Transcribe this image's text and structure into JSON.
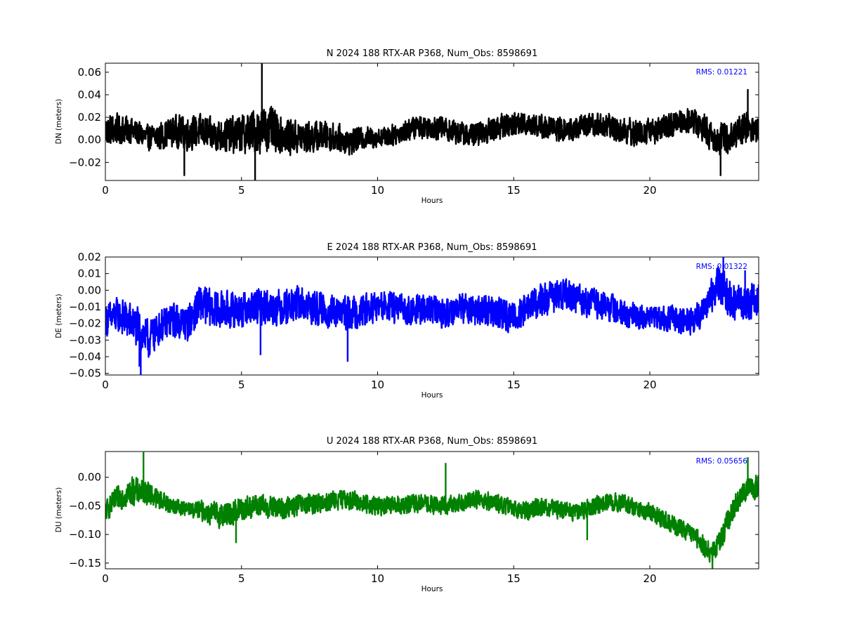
{
  "chart_data": [
    {
      "type": "line",
      "title": "N 2024 188 RTX-AR  P368, Num_Obs: 8598691",
      "xlabel": "Hours",
      "ylabel": "DN (meters)",
      "xlim": [
        0,
        24
      ],
      "ylim": [
        -0.036,
        0.068
      ],
      "xticks": [
        0,
        5,
        10,
        15,
        20
      ],
      "xtick_labels": [
        "0",
        "5",
        "10",
        "15",
        "20"
      ],
      "yticks": [
        -0.02,
        0.0,
        0.02,
        0.04,
        0.06
      ],
      "ytick_labels": [
        "−0.02",
        "0.00",
        "0.02",
        "0.04",
        "0.06"
      ],
      "grid": false,
      "annotation": "RMS:  0.01221",
      "series": [
        {
          "color": "#000000",
          "center": [
            [
              0,
              0.008
            ],
            [
              0.5,
              0.01
            ],
            [
              1,
              0.008
            ],
            [
              1.5,
              0.002
            ],
            [
              2,
              0.003
            ],
            [
              2.5,
              0.008
            ],
            [
              3,
              0.006
            ],
            [
              3.5,
              0.008
            ],
            [
              4,
              0.004
            ],
            [
              4.5,
              0.004
            ],
            [
              5,
              0.005
            ],
            [
              5.5,
              0.008
            ],
            [
              6,
              0.01
            ],
            [
              6.5,
              0.004
            ],
            [
              7,
              0.002
            ],
            [
              7.5,
              0.002
            ],
            [
              8,
              0.004
            ],
            [
              8.5,
              0.002
            ],
            [
              9,
              -0.002
            ],
            [
              9.5,
              0.002
            ],
            [
              10,
              0.002
            ],
            [
              10.5,
              0.004
            ],
            [
              11,
              0.008
            ],
            [
              11.5,
              0.012
            ],
            [
              12,
              0.012
            ],
            [
              12.5,
              0.01
            ],
            [
              13,
              0.006
            ],
            [
              13.5,
              0.004
            ],
            [
              14,
              0.008
            ],
            [
              14.5,
              0.012
            ],
            [
              15,
              0.014
            ],
            [
              15.5,
              0.015
            ],
            [
              16,
              0.012
            ],
            [
              16.5,
              0.01
            ],
            [
              17,
              0.008
            ],
            [
              17.5,
              0.012
            ],
            [
              18,
              0.014
            ],
            [
              18.5,
              0.012
            ],
            [
              19,
              0.008
            ],
            [
              19.5,
              0.006
            ],
            [
              20,
              0.008
            ],
            [
              20.5,
              0.01
            ],
            [
              21,
              0.016
            ],
            [
              21.5,
              0.018
            ],
            [
              22,
              0.01
            ],
            [
              22.5,
              0.0
            ],
            [
              23,
              0.004
            ],
            [
              23.5,
              0.012
            ],
            [
              24,
              0.008
            ]
          ],
          "amplitude": [
            [
              0,
              0.016
            ],
            [
              1.5,
              0.012
            ],
            [
              3,
              0.017
            ],
            [
              4,
              0.016
            ],
            [
              5,
              0.02
            ],
            [
              5.8,
              0.024
            ],
            [
              6.5,
              0.018
            ],
            [
              8,
              0.015
            ],
            [
              10,
              0.01
            ],
            [
              12,
              0.012
            ],
            [
              14,
              0.012
            ],
            [
              16,
              0.012
            ],
            [
              18,
              0.012
            ],
            [
              19.5,
              0.014
            ],
            [
              21,
              0.012
            ],
            [
              22.5,
              0.016
            ],
            [
              24,
              0.016
            ]
          ],
          "spikes": [
            [
              5.75,
              0.068
            ],
            [
              5.5,
              -0.036
            ],
            [
              2.9,
              -0.032
            ],
            [
              22.6,
              -0.032
            ],
            [
              23.6,
              0.045
            ]
          ]
        }
      ]
    },
    {
      "type": "line",
      "title": "E 2024 188 RTX-AR  P368, Num_Obs: 8598691",
      "xlabel": "Hours",
      "ylabel": "DE (meters)",
      "xlim": [
        0,
        24
      ],
      "ylim": [
        -0.051,
        0.02
      ],
      "xticks": [
        0,
        5,
        10,
        15,
        20
      ],
      "xtick_labels": [
        "0",
        "5",
        "10",
        "15",
        "20"
      ],
      "yticks": [
        -0.05,
        -0.04,
        -0.03,
        -0.02,
        -0.01,
        0.0,
        0.01,
        0.02
      ],
      "ytick_labels": [
        "−0.05",
        "−0.04",
        "−0.03",
        "−0.02",
        "−0.01",
        "0.00",
        "0.01",
        "0.02"
      ],
      "grid": false,
      "annotation": "RMS:  0.01322",
      "series": [
        {
          "color": "#0000ff",
          "center": [
            [
              0,
              -0.018
            ],
            [
              0.5,
              -0.015
            ],
            [
              1,
              -0.02
            ],
            [
              1.3,
              -0.025
            ],
            [
              1.6,
              -0.03
            ],
            [
              2,
              -0.022
            ],
            [
              2.5,
              -0.018
            ],
            [
              3,
              -0.02
            ],
            [
              3.5,
              -0.008
            ],
            [
              4,
              -0.012
            ],
            [
              4.5,
              -0.012
            ],
            [
              5,
              -0.012
            ],
            [
              5.5,
              -0.01
            ],
            [
              6,
              -0.01
            ],
            [
              6.5,
              -0.01
            ],
            [
              7,
              -0.008
            ],
            [
              7.5,
              -0.01
            ],
            [
              8,
              -0.012
            ],
            [
              8.5,
              -0.014
            ],
            [
              9,
              -0.014
            ],
            [
              9.5,
              -0.012
            ],
            [
              10,
              -0.01
            ],
            [
              10.5,
              -0.01
            ],
            [
              11,
              -0.012
            ],
            [
              11.5,
              -0.012
            ],
            [
              12,
              -0.012
            ],
            [
              12.5,
              -0.014
            ],
            [
              13,
              -0.01
            ],
            [
              13.5,
              -0.012
            ],
            [
              14,
              -0.012
            ],
            [
              14.5,
              -0.014
            ],
            [
              15,
              -0.016
            ],
            [
              15.5,
              -0.01
            ],
            [
              16,
              -0.006
            ],
            [
              16.5,
              -0.004
            ],
            [
              17,
              -0.002
            ],
            [
              17.5,
              -0.006
            ],
            [
              18,
              -0.008
            ],
            [
              18.5,
              -0.01
            ],
            [
              19,
              -0.014
            ],
            [
              19.5,
              -0.016
            ],
            [
              20,
              -0.016
            ],
            [
              20.5,
              -0.016
            ],
            [
              21,
              -0.018
            ],
            [
              21.5,
              -0.018
            ],
            [
              22,
              -0.012
            ],
            [
              22.5,
              0.004
            ],
            [
              23,
              -0.006
            ],
            [
              23.5,
              -0.008
            ],
            [
              24,
              -0.006
            ]
          ],
          "amplitude": [
            [
              0,
              0.011
            ],
            [
              1.3,
              0.014
            ],
            [
              2,
              0.011
            ],
            [
              3.5,
              0.013
            ],
            [
              5,
              0.012
            ],
            [
              7,
              0.012
            ],
            [
              9,
              0.011
            ],
            [
              11,
              0.01
            ],
            [
              13,
              0.01
            ],
            [
              15,
              0.011
            ],
            [
              16.5,
              0.011
            ],
            [
              18,
              0.01
            ],
            [
              20,
              0.008
            ],
            [
              22,
              0.01
            ],
            [
              22.8,
              0.013
            ],
            [
              24,
              0.012
            ]
          ],
          "spikes": [
            [
              1.3,
              -0.051
            ],
            [
              8.9,
              -0.043
            ],
            [
              22.7,
              0.02
            ],
            [
              23.5,
              0.012
            ],
            [
              1.25,
              -0.046
            ],
            [
              5.7,
              -0.039
            ]
          ]
        }
      ]
    },
    {
      "type": "line",
      "title": "U 2024 188 RTX-AR  P368, Num_Obs: 8598691",
      "xlabel": "Hours",
      "ylabel": "DU (meters)",
      "xlim": [
        0,
        24
      ],
      "ylim": [
        -0.16,
        0.045
      ],
      "xticks": [
        0,
        5,
        10,
        15,
        20
      ],
      "xtick_labels": [
        "0",
        "5",
        "10",
        "15",
        "20"
      ],
      "yticks": [
        -0.15,
        -0.1,
        -0.05,
        0.0
      ],
      "ytick_labels": [
        "−0.15",
        "−0.10",
        "−0.05",
        "0.00"
      ],
      "grid": false,
      "annotation": "RMS:  0.05656",
      "series": [
        {
          "color": "#008000",
          "center": [
            [
              0,
              -0.06
            ],
            [
              0.5,
              -0.035
            ],
            [
              1,
              -0.025
            ],
            [
              1.5,
              -0.025
            ],
            [
              2,
              -0.04
            ],
            [
              2.5,
              -0.05
            ],
            [
              3,
              -0.055
            ],
            [
              3.5,
              -0.058
            ],
            [
              4,
              -0.065
            ],
            [
              4.5,
              -0.065
            ],
            [
              5,
              -0.055
            ],
            [
              5.5,
              -0.05
            ],
            [
              6,
              -0.052
            ],
            [
              6.5,
              -0.055
            ],
            [
              7,
              -0.05
            ],
            [
              7.5,
              -0.048
            ],
            [
              8,
              -0.045
            ],
            [
              8.5,
              -0.04
            ],
            [
              9,
              -0.04
            ],
            [
              9.5,
              -0.045
            ],
            [
              10,
              -0.05
            ],
            [
              10.5,
              -0.05
            ],
            [
              11,
              -0.048
            ],
            [
              11.5,
              -0.045
            ],
            [
              12,
              -0.048
            ],
            [
              12.5,
              -0.05
            ],
            [
              13,
              -0.045
            ],
            [
              13.5,
              -0.038
            ],
            [
              14,
              -0.04
            ],
            [
              14.5,
              -0.048
            ],
            [
              15,
              -0.055
            ],
            [
              15.5,
              -0.058
            ],
            [
              16,
              -0.052
            ],
            [
              16.5,
              -0.055
            ],
            [
              17,
              -0.06
            ],
            [
              17.5,
              -0.058
            ],
            [
              18,
              -0.048
            ],
            [
              18.5,
              -0.042
            ],
            [
              19,
              -0.045
            ],
            [
              19.5,
              -0.055
            ],
            [
              20,
              -0.06
            ],
            [
              20.5,
              -0.075
            ],
            [
              21,
              -0.085
            ],
            [
              21.5,
              -0.1
            ],
            [
              22,
              -0.12
            ],
            [
              22.3,
              -0.135
            ],
            [
              22.6,
              -0.11
            ],
            [
              23,
              -0.06
            ],
            [
              23.5,
              -0.025
            ],
            [
              24,
              -0.015
            ]
          ],
          "amplitude": [
            [
              0,
              0.02
            ],
            [
              1,
              0.028
            ],
            [
              2,
              0.02
            ],
            [
              3,
              0.013
            ],
            [
              4,
              0.025
            ],
            [
              5,
              0.025
            ],
            [
              6,
              0.022
            ],
            [
              8,
              0.02
            ],
            [
              10,
              0.018
            ],
            [
              12,
              0.018
            ],
            [
              14,
              0.018
            ],
            [
              16,
              0.018
            ],
            [
              18,
              0.018
            ],
            [
              20,
              0.018
            ],
            [
              22,
              0.02
            ],
            [
              23,
              0.022
            ],
            [
              24,
              0.025
            ]
          ],
          "spikes": [
            [
              1.4,
              0.044
            ],
            [
              12.5,
              0.025
            ],
            [
              22.3,
              -0.16
            ],
            [
              4.8,
              -0.115
            ],
            [
              17.7,
              -0.11
            ],
            [
              23.6,
              0.035
            ]
          ]
        }
      ]
    }
  ]
}
